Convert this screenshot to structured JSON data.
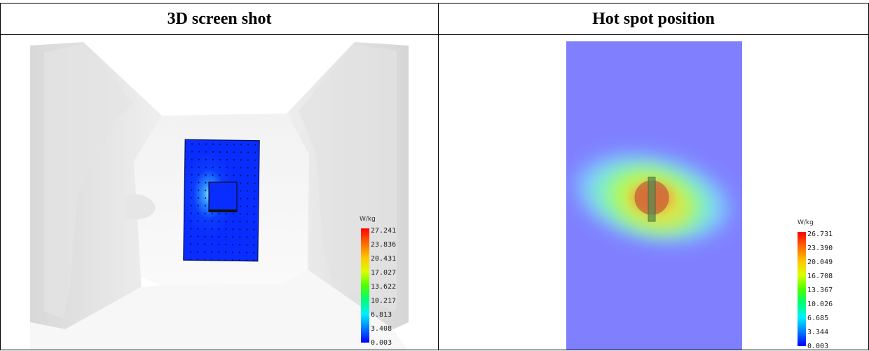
{
  "table": {
    "col1_header": "3D screen shot",
    "col2_header": "Hot spot position"
  },
  "left_panel": {
    "legend_unit": "W/kg",
    "legend_values": [
      "27.241",
      "23.836",
      "20.431",
      "17.027",
      "13.622",
      "10.217",
      "6.813",
      "3.408",
      "0.003"
    ]
  },
  "right_panel": {
    "legend_unit": "W/kg",
    "legend_values": [
      "26.731",
      "23.390",
      "20.049",
      "16.708",
      "13.367",
      "10.026",
      "6.685",
      "3.344",
      "0.003"
    ]
  },
  "colors": {
    "scale": [
      "#ff0000",
      "#ff6a00",
      "#ffc000",
      "#e8ff00",
      "#7dff00",
      "#00ff40",
      "#00ffd0",
      "#00a0ff",
      "#0000ff"
    ],
    "phantom_blue": "#0a2dff",
    "hotspot_background": "#8080ff"
  }
}
